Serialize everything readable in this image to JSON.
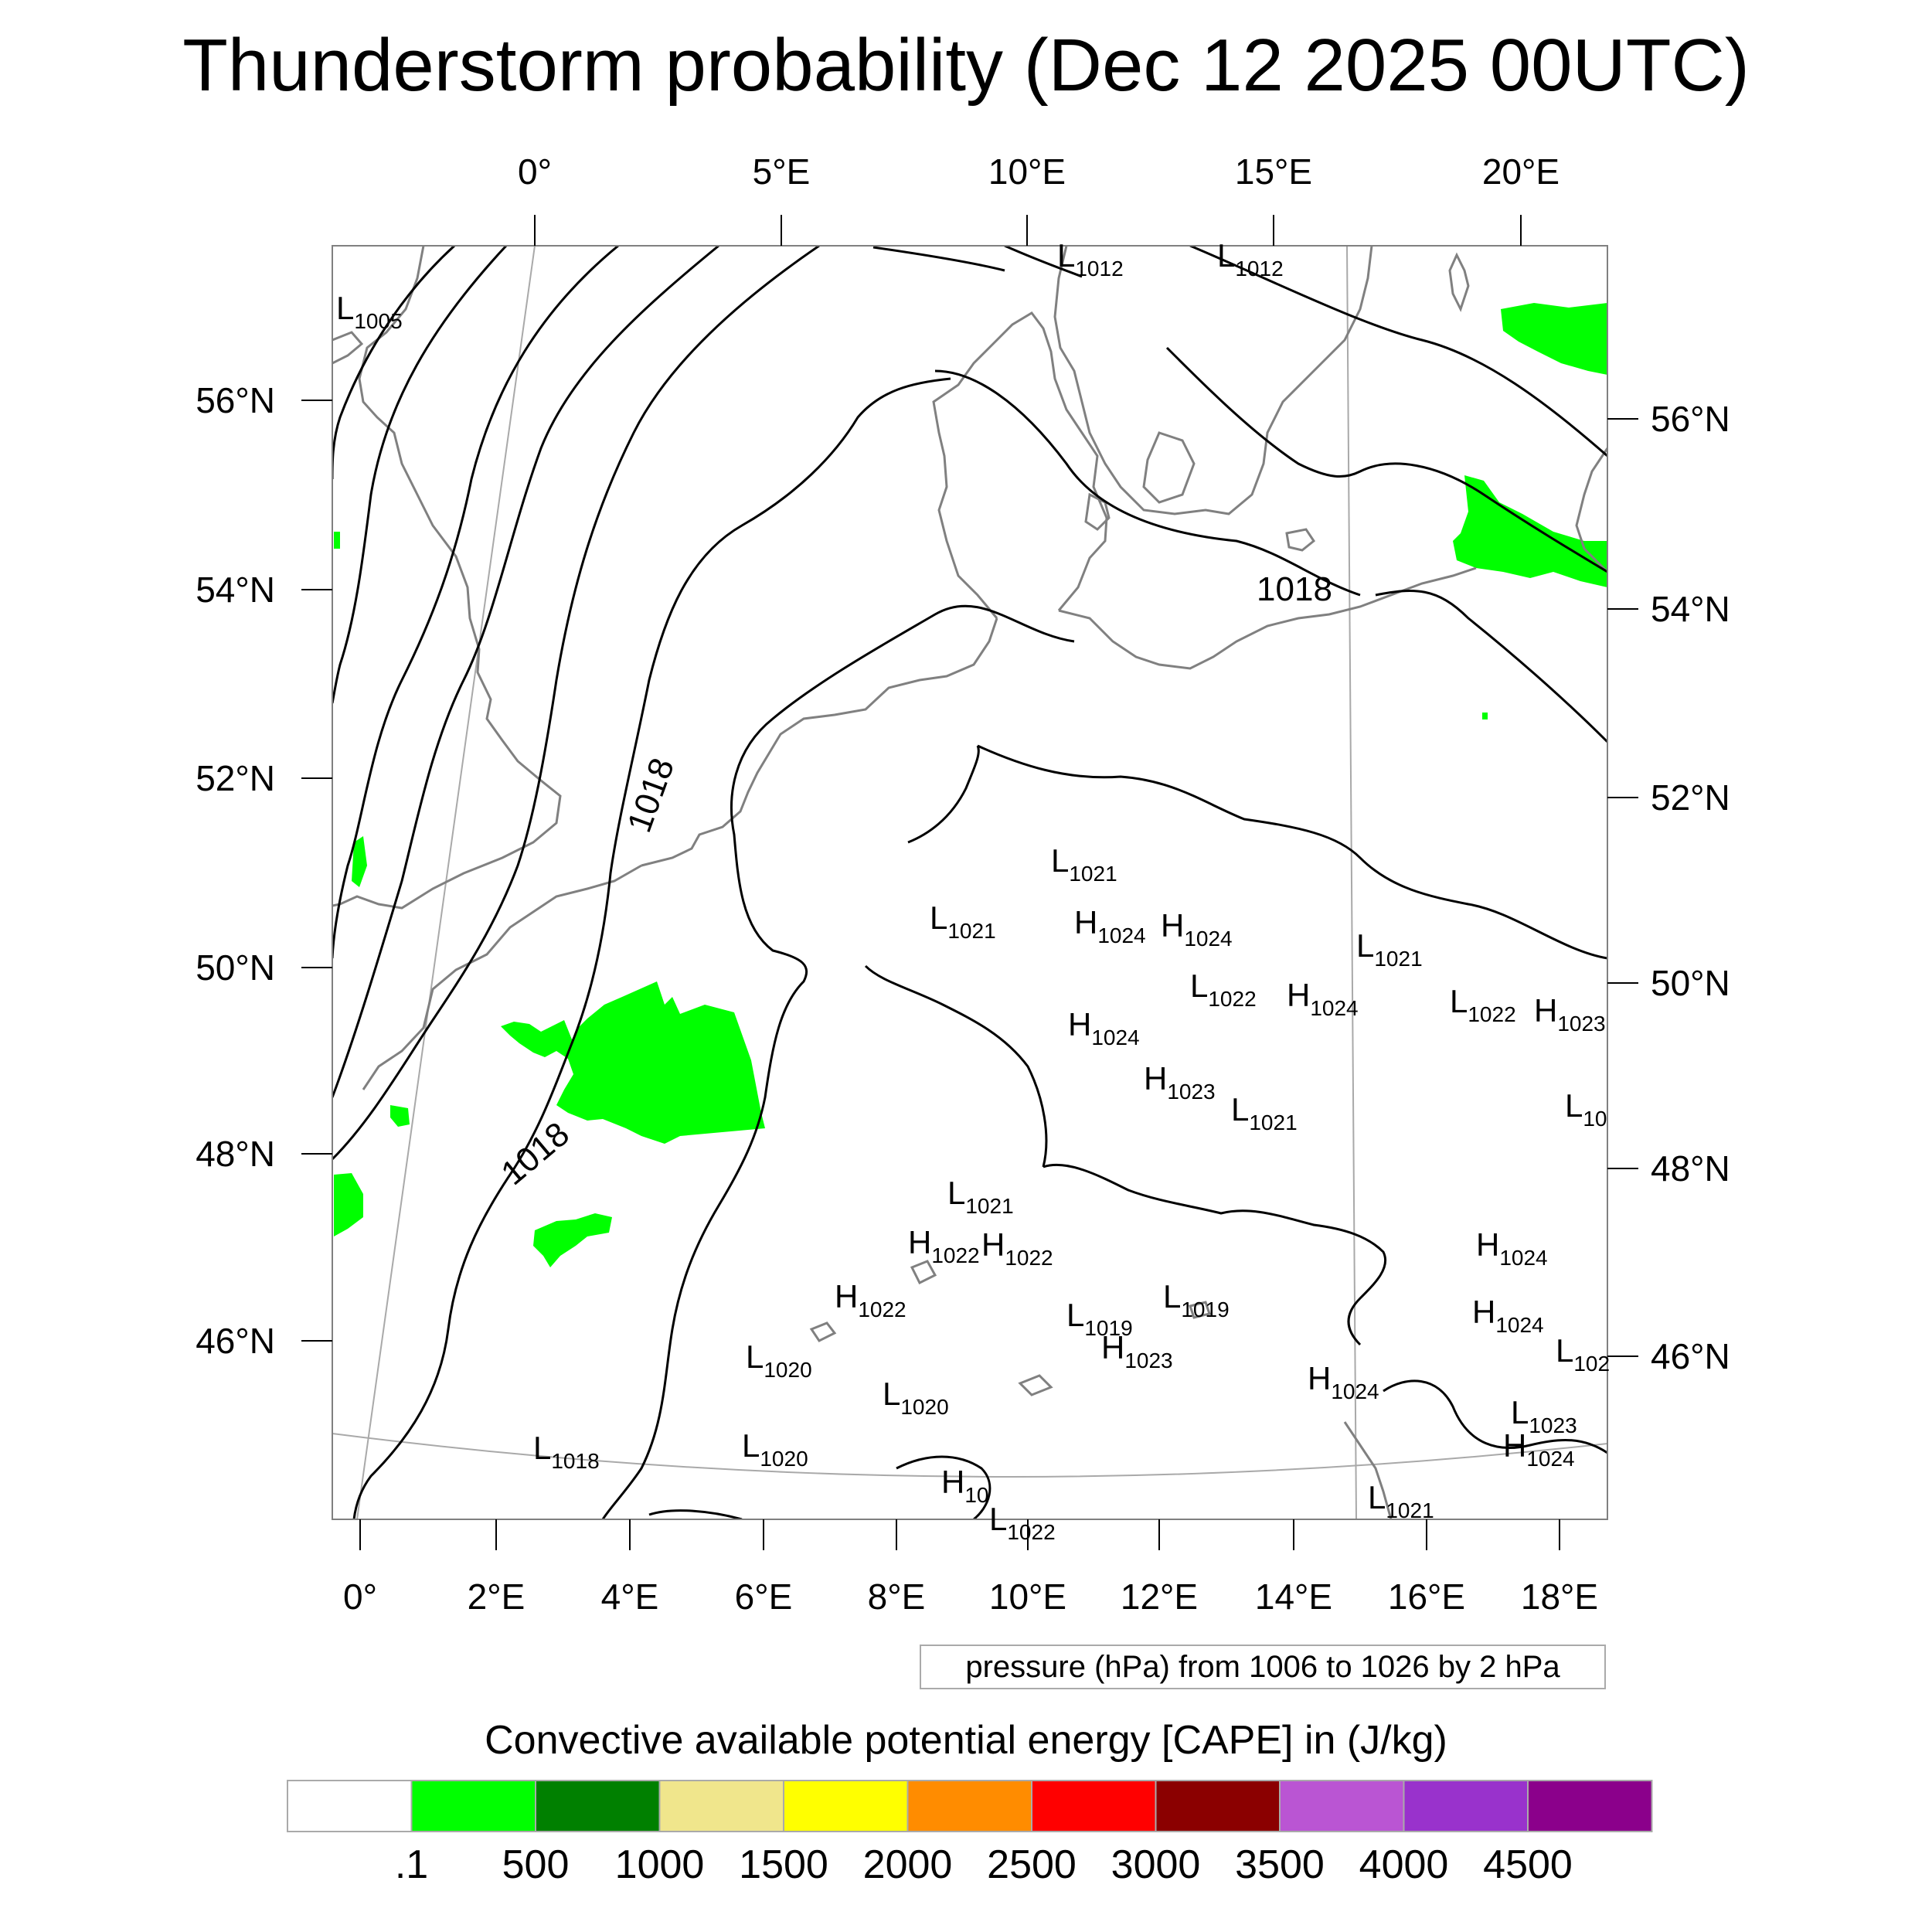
{
  "title": "Thunderstorm probability (Dec 12 2025 00UTC)",
  "top_lon_labels": [
    "0°",
    "5°E",
    "10°E",
    "15°E",
    "20°E"
  ],
  "left_lat_labels": [
    "56°N",
    "54°N",
    "52°N",
    "50°N",
    "48°N",
    "46°N"
  ],
  "right_lat_labels": [
    "56°N",
    "54°N",
    "52°N",
    "50°N",
    "48°N",
    "46°N"
  ],
  "bottom_lon_labels": [
    "0°",
    "2°E",
    "4°E",
    "6°E",
    "8°E",
    "10°E",
    "12°E",
    "14°E",
    "16°E",
    "18°E"
  ],
  "contour_labels": [
    "1018",
    "1018",
    "1018"
  ],
  "pressure_centers": [
    {
      "letter": "L",
      "value": "1005"
    },
    {
      "letter": "L",
      "value": "1012"
    },
    {
      "letter": "L",
      "value": "1012"
    },
    {
      "letter": "L",
      "value": "1021"
    },
    {
      "letter": "L",
      "value": "1021"
    },
    {
      "letter": "H",
      "value": "1024"
    },
    {
      "letter": "H",
      "value": "1024"
    },
    {
      "letter": "L",
      "value": "1021"
    },
    {
      "letter": "L",
      "value": "1022"
    },
    {
      "letter": "H",
      "value": "1024"
    },
    {
      "letter": "L",
      "value": "1022"
    },
    {
      "letter": "H",
      "value": "1023"
    },
    {
      "letter": "H",
      "value": "1024"
    },
    {
      "letter": "H",
      "value": "1023"
    },
    {
      "letter": "L",
      "value": "1021"
    },
    {
      "letter": "L",
      "value": "10"
    },
    {
      "letter": "L",
      "value": "1021"
    },
    {
      "letter": "H",
      "value": "1022"
    },
    {
      "letter": "H",
      "value": "1022"
    },
    {
      "letter": "H",
      "value": "1022"
    },
    {
      "letter": "H",
      "value": "1024"
    },
    {
      "letter": "L",
      "value": "1019"
    },
    {
      "letter": "L",
      "value": "1019"
    },
    {
      "letter": "H",
      "value": "1023"
    },
    {
      "letter": "H",
      "value": "1024"
    },
    {
      "letter": "L",
      "value": "102"
    },
    {
      "letter": "L",
      "value": "1020"
    },
    {
      "letter": "L",
      "value": "1020"
    },
    {
      "letter": "H",
      "value": "1024"
    },
    {
      "letter": "L",
      "value": "1023"
    },
    {
      "letter": "L",
      "value": "1018"
    },
    {
      "letter": "L",
      "value": "1020"
    },
    {
      "letter": "H",
      "value": "1024"
    },
    {
      "letter": "H",
      "value": "10"
    },
    {
      "letter": "L",
      "value": "1022"
    },
    {
      "letter": "L",
      "value": "1021"
    }
  ],
  "pressure_note": "pressure (hPa) from 1006 to 1026 by 2 hPa",
  "colorbar": {
    "title": "Convective available potential energy [CAPE] in (J/kg)",
    "colors": [
      "#ffffff",
      "#00ff00",
      "#008000",
      "#f0e68c",
      "#ffff00",
      "#ff8c00",
      "#ff0000",
      "#8b0000",
      "#ba55d3",
      "#9932cc",
      "#8b008b"
    ],
    "labels": [
      ".1",
      "500",
      "1000",
      "1500",
      "2000",
      "2500",
      "3000",
      "3500",
      "4000",
      "4500"
    ]
  },
  "colors": {
    "cape_area": "#00ff00",
    "isobar": "#000000",
    "coastline": "#808080",
    "graticule": "#a9a9a9"
  }
}
